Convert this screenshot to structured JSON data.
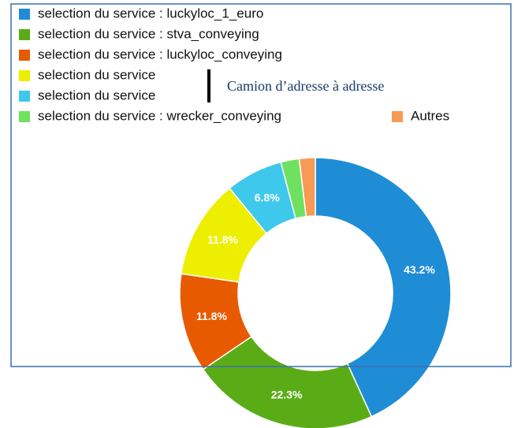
{
  "chart_data": {
    "type": "pie",
    "donut": true,
    "categories": [
      "selection du service : luckyloc_1_euro",
      "selection du service : stva_conveying",
      "selection du service : luckyloc_conveying",
      "selection du service",
      "selection du service",
      "selection du service : wrecker_conveying",
      "Autres"
    ],
    "values": [
      43.2,
      22.3,
      11.8,
      11.8,
      6.8,
      2.2,
      1.9
    ],
    "value_labels": [
      "43.2%",
      "22.3%",
      "11.8%",
      "11.8%",
      "6.8%",
      null,
      null
    ],
    "colors": [
      "#1f8dd6",
      "#5aac17",
      "#e85a00",
      "#eeee00",
      "#3ec8ec",
      "#70e060",
      "#f79a55"
    ],
    "annotation": "Camion d’adresse à adresse"
  }
}
